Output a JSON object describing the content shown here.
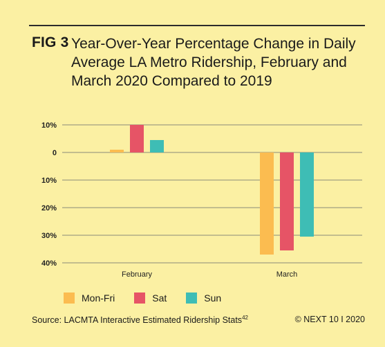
{
  "title": {
    "fig_label": "FIG 3",
    "text": "Year-Over-Year Percentage Change in Daily Average LA Metro Ridership, February and March 2020 Compared to 2019"
  },
  "chart_data": {
    "type": "bar",
    "categories": [
      "February",
      "March"
    ],
    "series": [
      {
        "name": "Mon-Fri",
        "color": "#fbbc50",
        "values": [
          1,
          -37
        ]
      },
      {
        "name": "Sat",
        "color": "#e65466",
        "values": [
          10,
          -35.5
        ]
      },
      {
        "name": "Sun",
        "color": "#3ebdb5",
        "values": [
          4.5,
          -30.5
        ]
      }
    ],
    "y_ticks": [
      {
        "value": 10,
        "label": "10%"
      },
      {
        "value": 0,
        "label": "0"
      },
      {
        "value": -10,
        "label": "10%"
      },
      {
        "value": -20,
        "label": "20%"
      },
      {
        "value": -30,
        "label": "30%"
      },
      {
        "value": -40,
        "label": "40%"
      }
    ],
    "ylim": [
      -40,
      10
    ],
    "grid": true,
    "legend_position": "bottom-left"
  },
  "source": {
    "text": "Source: LACMTA Interactive Estimated Ridership Stats",
    "footnote": "42"
  },
  "credit": "© NEXT 10 I 2020"
}
